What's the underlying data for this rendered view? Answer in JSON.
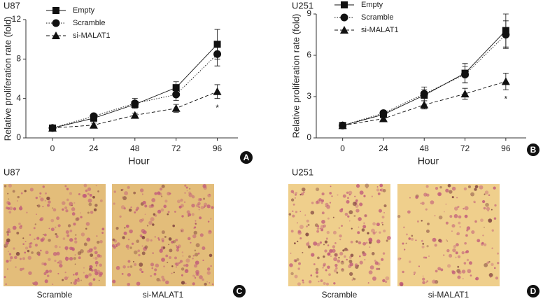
{
  "chart_data": [
    {
      "type": "line",
      "title": "U87",
      "ylabel": "Relative proliferation rate (fold)",
      "xlabel": "Hour",
      "panel": "A",
      "x": [
        0,
        24,
        48,
        72,
        96
      ],
      "xlim": [
        -15.5,
        108
      ],
      "xticks": [
        0,
        24,
        48,
        72,
        96
      ],
      "ylim": [
        0,
        12
      ],
      "yticks": [
        0,
        4,
        8,
        12
      ],
      "legend": "upper left",
      "annotation": "*",
      "series": [
        {
          "name": "Empty",
          "color": "#111111",
          "marker": "square",
          "line_style": "solid",
          "values": [
            1,
            2.0,
            3.4,
            5.1,
            9.5
          ],
          "errors": [
            0.1,
            0.2,
            0.3,
            0.6,
            1.5
          ]
        },
        {
          "name": "Scramble",
          "color": "#111111",
          "marker": "circle",
          "line_style": "dotted",
          "values": [
            1,
            2.2,
            3.5,
            4.4,
            8.5
          ],
          "errors": [
            0.1,
            0.2,
            0.5,
            0.6,
            1.2
          ]
        },
        {
          "name": "si-MALAT1",
          "color": "#111111",
          "marker": "triangle",
          "line_style": "dashed",
          "values": [
            1,
            1.3,
            2.3,
            3.0,
            4.7
          ],
          "errors": [
            0.1,
            0.2,
            0.2,
            0.4,
            0.7
          ]
        }
      ]
    },
    {
      "type": "line",
      "title": "U251",
      "ylabel": "Relative proliferation rate (fold)",
      "xlabel": "Hour",
      "panel": "B",
      "x": [
        0,
        24,
        48,
        72,
        96
      ],
      "xlim": [
        -15.5,
        108
      ],
      "xticks": [
        0,
        24,
        48,
        72,
        96
      ],
      "ylim": [
        0,
        9
      ],
      "yticks": [
        0,
        3,
        6,
        9
      ],
      "legend": "upper left",
      "annotation": "*",
      "series": [
        {
          "name": "Empty",
          "color": "#111111",
          "marker": "square",
          "line_style": "solid",
          "values": [
            0.9,
            1.7,
            3.1,
            4.7,
            7.8
          ],
          "errors": [
            0.05,
            0.2,
            0.4,
            0.7,
            1.2
          ]
        },
        {
          "name": "Scramble",
          "color": "#111111",
          "marker": "circle",
          "line_style": "dotted",
          "values": [
            0.9,
            1.8,
            3.2,
            4.6,
            7.5
          ],
          "errors": [
            0.05,
            0.2,
            0.5,
            0.6,
            1.0
          ]
        },
        {
          "name": "si-MALAT1",
          "color": "#111111",
          "marker": "triangle",
          "line_style": "dashed",
          "values": [
            0.9,
            1.4,
            2.4,
            3.2,
            4.1
          ],
          "errors": [
            0.05,
            0.2,
            0.3,
            0.4,
            0.6
          ]
        }
      ]
    }
  ],
  "image_panels": [
    {
      "title": "U87",
      "panel": "C",
      "captions": [
        "Scramble",
        "si-MALAT1"
      ]
    },
    {
      "title": "U251",
      "panel": "D",
      "captions": [
        "Scramble",
        "si-MALAT1"
      ]
    }
  ]
}
